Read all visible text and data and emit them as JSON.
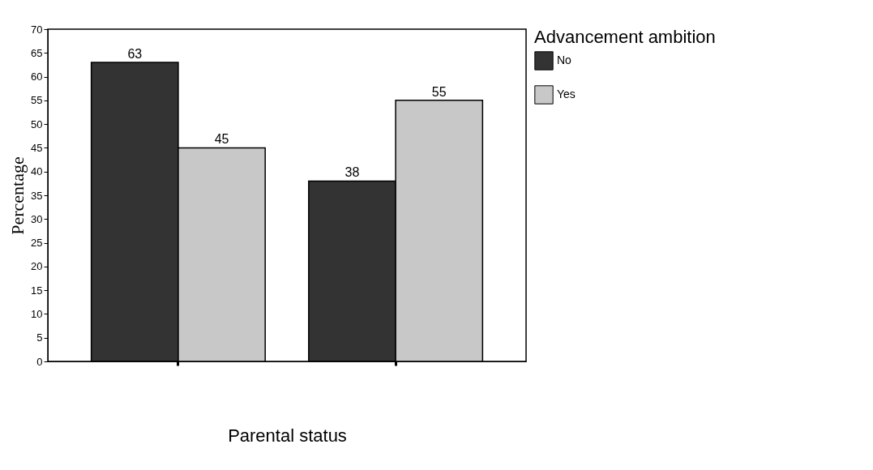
{
  "chart_data": {
    "type": "bar",
    "xlabel": "Parental status",
    "ylabel": "Percentage",
    "legend_title": "Advancement ambition",
    "categories": [
      null,
      null
    ],
    "series": [
      {
        "name": "No",
        "color": "#333333",
        "values": [
          63,
          38
        ]
      },
      {
        "name": "Yes",
        "color": "#c8c8c8",
        "values": [
          45,
          55
        ]
      }
    ],
    "ylim": [
      0,
      70
    ],
    "yticks": [
      0,
      5,
      10,
      15,
      20,
      25,
      30,
      35,
      40,
      45,
      50,
      55,
      60,
      65,
      70
    ],
    "data_labels": true,
    "legend": "right",
    "grid": false
  }
}
